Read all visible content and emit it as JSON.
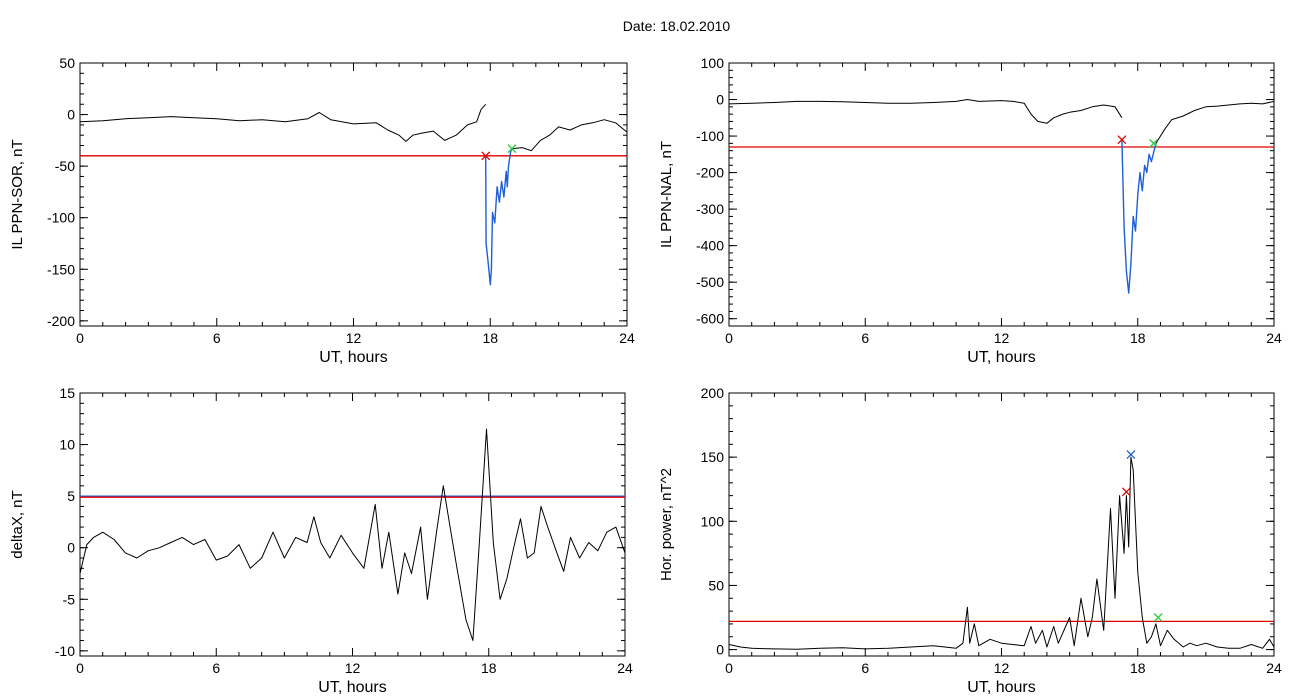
{
  "page": {
    "title": "Date:  18.02.2010"
  },
  "colors": {
    "threshold": "#e00000",
    "highlight": "#1f5fd6",
    "end_marker": "#2ecc40",
    "peak_marker": "#1f5fd6",
    "trace": "#000000"
  },
  "chart_data": [
    {
      "type": "line",
      "ylabel": "IL PPN-SOR, nT",
      "xlabel": "UT, hours",
      "xlim": [
        0,
        24
      ],
      "ylim": [
        -205,
        50
      ],
      "xticks": [
        0,
        6,
        12,
        18,
        24
      ],
      "yticks": [
        50,
        0,
        -50,
        -100,
        -150,
        -200
      ],
      "threshold": -40,
      "series": [
        {
          "role": "trace",
          "x": [
            0,
            1,
            2,
            3,
            4,
            5,
            6,
            7,
            8,
            9,
            10,
            10.5,
            11,
            12,
            13,
            13.5,
            14,
            14.3,
            14.6,
            15,
            15.5,
            16,
            16.5,
            17,
            17.4,
            17.6,
            17.8
          ],
          "values": [
            -7,
            -6,
            -4,
            -3,
            -2,
            -3,
            -4,
            -6,
            -5,
            -7,
            -4,
            2,
            -5,
            -9,
            -8,
            -15,
            -20,
            -26,
            -20,
            -18,
            -16,
            -25,
            -20,
            -10,
            -7,
            5,
            10
          ]
        },
        {
          "role": "event",
          "x": [
            17.8,
            17.82,
            17.9,
            18.0,
            18.05,
            18.1,
            18.2,
            18.3,
            18.4,
            18.5,
            18.6,
            18.7,
            18.75,
            18.8,
            18.9,
            19.0
          ],
          "values": [
            -40,
            -125,
            -142,
            -165,
            -150,
            -95,
            -105,
            -70,
            -85,
            -65,
            -80,
            -55,
            -70,
            -50,
            -35,
            -33
          ]
        },
        {
          "role": "trace",
          "x": [
            19.0,
            19.4,
            19.8,
            20.2,
            20.6,
            21,
            21.5,
            22,
            22.5,
            23,
            23.5,
            24
          ],
          "values": [
            -33,
            -32,
            -35,
            -25,
            -20,
            -12,
            -15,
            -10,
            -8,
            -5,
            -8,
            -17
          ]
        }
      ],
      "markers": [
        {
          "x": 17.8,
          "y": -40,
          "color": "#e00000"
        },
        {
          "x": 18.95,
          "y": -33,
          "color": "#2ecc40"
        }
      ]
    },
    {
      "type": "line",
      "ylabel": "IL PPN-NAL, nT",
      "xlabel": "UT, hours",
      "xlim": [
        0,
        24
      ],
      "ylim": [
        -620,
        100
      ],
      "xticks": [
        0,
        6,
        12,
        18,
        24
      ],
      "yticks": [
        100,
        0,
        -100,
        -200,
        -300,
        -400,
        -500,
        -600
      ],
      "threshold": -130,
      "series": [
        {
          "role": "trace",
          "x": [
            0,
            1,
            2,
            3,
            4,
            5,
            6,
            7,
            8,
            9,
            10,
            10.5,
            11,
            12,
            12.5,
            13,
            13.3,
            13.6,
            14,
            14.3,
            14.7,
            15,
            15.5,
            16,
            16.5,
            17,
            17.3
          ],
          "values": [
            -12,
            -10,
            -8,
            -5,
            -5,
            -6,
            -8,
            -10,
            -10,
            -8,
            -5,
            0,
            -5,
            -3,
            -5,
            -10,
            -40,
            -60,
            -65,
            -50,
            -40,
            -35,
            -30,
            -20,
            -15,
            -20,
            -50
          ]
        },
        {
          "role": "event",
          "x": [
            17.3,
            17.4,
            17.5,
            17.6,
            17.7,
            17.8,
            17.9,
            18.0,
            18.1,
            18.2,
            18.3,
            18.4,
            18.5,
            18.6,
            18.8
          ],
          "values": [
            -110,
            -350,
            -470,
            -530,
            -450,
            -320,
            -360,
            -260,
            -200,
            -250,
            -180,
            -200,
            -150,
            -170,
            -120
          ]
        },
        {
          "role": "trace",
          "x": [
            18.8,
            19.2,
            19.5,
            20,
            20.5,
            21,
            21.5,
            22,
            22.5,
            23,
            23.5,
            24
          ],
          "values": [
            -120,
            -80,
            -55,
            -45,
            -30,
            -20,
            -18,
            -15,
            -12,
            -10,
            -12,
            -5
          ]
        }
      ],
      "markers": [
        {
          "x": 17.3,
          "y": -110,
          "color": "#e00000"
        },
        {
          "x": 18.7,
          "y": -120,
          "color": "#2ecc40"
        }
      ]
    },
    {
      "type": "line",
      "ylabel": "deltaX, nT",
      "xlabel": "UT, hours",
      "xlim": [
        0,
        24
      ],
      "ylim": [
        -10.5,
        15
      ],
      "xticks": [
        0,
        6,
        12,
        18,
        24
      ],
      "yticks": [
        15,
        10,
        5,
        0,
        -5,
        -10
      ],
      "threshold": 4.9,
      "series": [
        {
          "role": "trace",
          "x": [
            0,
            0.3,
            0.6,
            1,
            1.5,
            2,
            2.5,
            3,
            3.5,
            4,
            4.5,
            5,
            5.5,
            6,
            6.5,
            7,
            7.5,
            8,
            8.5,
            9,
            9.5,
            10,
            10.3,
            10.6,
            11,
            11.5,
            12,
            12.5,
            13,
            13.3,
            13.6,
            14,
            14.3,
            14.6,
            15,
            15.3,
            15.7,
            16,
            16.3,
            16.6,
            17,
            17.3,
            17.6,
            17.9,
            18.2,
            18.5,
            18.8,
            19.1,
            19.4,
            19.7,
            20,
            20.3,
            20.6,
            21,
            21.3,
            21.6,
            22,
            22.4,
            22.8,
            23.2,
            23.6,
            24
          ],
          "values": [
            -2.5,
            0.3,
            1,
            1.5,
            0.8,
            -0.5,
            -1,
            -0.3,
            0,
            0.5,
            1,
            0.3,
            0.8,
            -1.2,
            -0.8,
            0.3,
            -2,
            -1,
            1.5,
            -1,
            1,
            0.5,
            3,
            0.5,
            -1,
            1.2,
            -0.5,
            -2,
            4.2,
            -2,
            1.5,
            -4.5,
            -0.5,
            -2.5,
            2,
            -5,
            1.5,
            6,
            2,
            -2,
            -7,
            -9,
            1,
            11.5,
            0.5,
            -5,
            -3,
            0,
            2.8,
            -1,
            -0.5,
            4,
            2,
            -0.5,
            -2.3,
            1,
            -1,
            0.5,
            -0.3,
            1.5,
            2,
            -0.5
          ]
        }
      ],
      "markers": []
    },
    {
      "type": "line",
      "ylabel": "Hor. power, nT^2",
      "xlabel": "UT, hours",
      "xlim": [
        0,
        24
      ],
      "ylim": [
        -5,
        200
      ],
      "xticks": [
        0,
        6,
        12,
        18,
        24
      ],
      "yticks": [
        200,
        150,
        100,
        50,
        0
      ],
      "threshold": 22,
      "series": [
        {
          "role": "trace",
          "x": [
            0,
            0.5,
            1,
            2,
            3,
            4,
            5,
            6,
            7,
            8,
            9,
            10,
            10.3,
            10.5,
            10.6,
            10.8,
            11,
            11.5,
            12,
            12.5,
            13,
            13.3,
            13.5,
            13.8,
            14,
            14.3,
            14.5,
            15,
            15.2,
            15.5,
            15.8,
            16,
            16.2,
            16.5,
            16.8,
            17,
            17.2,
            17.4,
            17.5,
            17.6,
            17.7,
            17.8,
            18.0,
            18.2,
            18.4,
            18.6,
            18.8,
            19,
            19.3,
            19.6,
            20,
            20.3,
            20.6,
            21,
            21.5,
            22,
            22.5,
            23,
            23.5,
            23.8,
            24
          ],
          "values": [
            4,
            2,
            1,
            0.5,
            0.3,
            1,
            1.5,
            0.5,
            1,
            2,
            3,
            1,
            5,
            33,
            5,
            20,
            3,
            8,
            5,
            4,
            3,
            18,
            5,
            15,
            2,
            18,
            5,
            25,
            3,
            40,
            10,
            25,
            55,
            15,
            110,
            40,
            120,
            75,
            120,
            80,
            150,
            140,
            60,
            25,
            5,
            10,
            20,
            3,
            15,
            8,
            2,
            5,
            3,
            5,
            2,
            1,
            1,
            4,
            1,
            8,
            2
          ]
        }
      ],
      "markers": [
        {
          "x": 17.5,
          "y": 123,
          "color": "#e00000"
        },
        {
          "x": 17.7,
          "y": 152,
          "color": "#1f5fd6"
        },
        {
          "x": 18.9,
          "y": 25,
          "color": "#2ecc40"
        }
      ]
    }
  ]
}
